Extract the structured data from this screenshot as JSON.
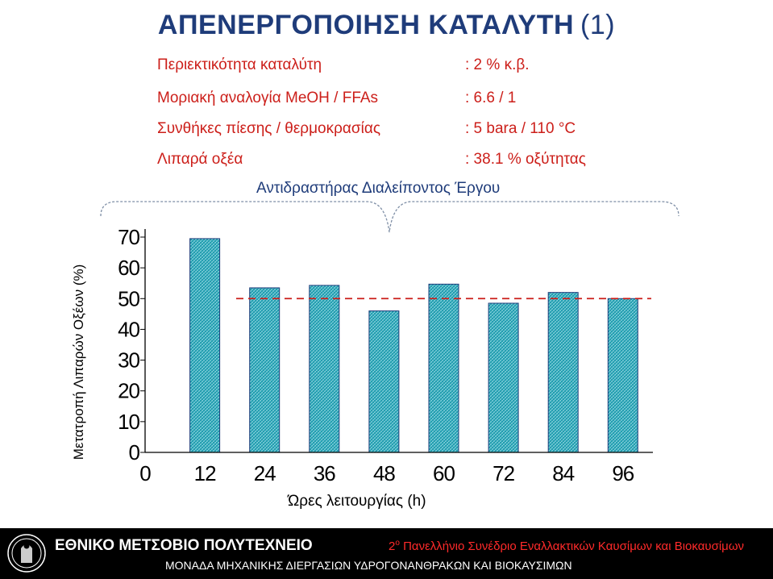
{
  "title": "ΑΠΕΝΕΡΓΟΠΟΙΗΣΗ ΚΑΤΑΛΥΤΗ",
  "title_number": "(1)",
  "parameters": [
    {
      "label": "Περιεκτικότητα καταλύτη",
      "value": ": 2 % κ.β."
    },
    {
      "label": "Μοριακή αναλογία MeOH / FFAs",
      "value": ": 6.6 / 1"
    },
    {
      "label": "Συνθήκες πίεσης / θερμοκρασίας",
      "value": ": 5 bara / 110 °C"
    },
    {
      "label": "Λιπαρά οξέα",
      "value": ": 38.1 % οξύτητας"
    }
  ],
  "brace_label": "Αντιδραστήρας Διαλείποντος Έργου",
  "colors": {
    "title": "#1f3c7a",
    "parameters": "#cc1f1a",
    "bar_fill": "#2aa6b8",
    "bar_border": "#1f3c7a",
    "dashed_line": "#cc1f1a",
    "footer_bg": "#000000",
    "conference_text": "#ff2a2a"
  },
  "chart_data": {
    "type": "bar",
    "xlabel": "Ώρες λειτουργίας (h)",
    "ylabel": "Μετατροπή Λιπαρών Οξέων (%)",
    "x_ticks": [
      "0",
      "12",
      "24",
      "36",
      "48",
      "60",
      "72",
      "84",
      "96"
    ],
    "categories": [
      "12",
      "24",
      "36",
      "48",
      "60",
      "72",
      "84",
      "96"
    ],
    "values": [
      69.5,
      53.5,
      54.3,
      46,
      54.7,
      48.5,
      52,
      50
    ],
    "y_ticks": [
      "0",
      "10",
      "20",
      "30",
      "40",
      "50",
      "60",
      "70"
    ],
    "ylim": [
      0,
      72
    ],
    "reference_line": 50,
    "reference_line_style": "dashed",
    "grid": false,
    "legend": "none"
  },
  "footer": {
    "org_name": "ΕΘΝΙΚΟ ΜΕΤΣΟΒΙΟ ΠΟΛΥΤΕΧΝΕΙΟ",
    "conference_sup": "ο",
    "conference": "Πανελλήνιο Συνέδριο Εναλλακτικών Καυσίμων και Βιοκαυσίμων",
    "conference_num": "2",
    "department": "ΜΟΝΑΔΑ ΜΗΧΑΝΙΚΗΣ ΔΙΕΡΓΑΣΙΩΝ ΥΔΡΟΓΟΝΑΝΘΡΑΚΩΝ ΚΑΙ ΒΙΟΚΑΥΣΙΜΩΝ"
  }
}
